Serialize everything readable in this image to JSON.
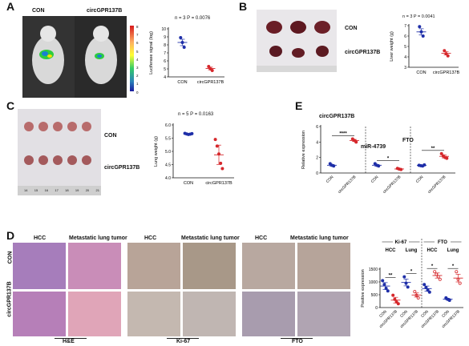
{
  "panels": {
    "a": {
      "letter": "A",
      "con": "CON",
      "treat": "circGPR137B",
      "colorbar_ticks": [
        "8",
        "7",
        "6",
        "5",
        "4",
        "3",
        "2",
        "1",
        "0"
      ],
      "stat": "n = 3  P = 0.0076"
    },
    "b": {
      "letter": "B",
      "con": "CON",
      "treat": "circGPR137B",
      "stat": "n = 3  P = 0.0041"
    },
    "c": {
      "letter": "C",
      "con": "CON",
      "treat": "circGPR137B",
      "stat": "n = 5  P = 0.0163",
      "ruler": [
        "14",
        "15",
        "16",
        "17",
        "18",
        "19",
        "20",
        "21"
      ]
    },
    "e": {
      "letter": "E",
      "group1": "circGPR137B",
      "group2": "miR-4739",
      "group3": "FTO"
    },
    "d": {
      "letter": "D",
      "hcc": "HCC",
      "met": "Metastatic lung tumor",
      "row_con": "CON",
      "row_treat": "circGPR137B",
      "stain1": "H&E",
      "stain2": "Ki-67",
      "stain3": "FTO"
    }
  },
  "colors": {
    "con": "#1f2fa8",
    "treat": "#d6282c",
    "mean": "#222222"
  },
  "chart_data": [
    {
      "id": "A",
      "type": "scatter",
      "ylabel": "Luciferase signal (log)",
      "ylim": [
        4,
        10
      ],
      "yticks": [
        4,
        5,
        6,
        7,
        8,
        9,
        10
      ],
      "categories": [
        "CON",
        "circGPR137B"
      ],
      "series": [
        {
          "name": "CON",
          "points": [
            8.9,
            8.3,
            7.7
          ],
          "mean": 8.3
        },
        {
          "name": "circGPR137B",
          "points": [
            5.3,
            5.0,
            4.8
          ],
          "mean": 5.05
        }
      ]
    },
    {
      "id": "B",
      "type": "scatter",
      "ylabel": "Liver weight (g)",
      "ylim": [
        3,
        7
      ],
      "yticks": [
        3,
        4,
        5,
        6,
        7
      ],
      "categories": [
        "CON",
        "circGPR137B"
      ],
      "series": [
        {
          "name": "CON",
          "points": [
            6.9,
            6.4,
            6.0
          ],
          "mean": 6.4
        },
        {
          "name": "circGPR137B",
          "points": [
            4.6,
            4.3,
            4.1
          ],
          "mean": 4.35
        }
      ]
    },
    {
      "id": "C",
      "type": "scatter",
      "ylabel": "Lung weight (g)",
      "ylim": [
        4.0,
        6.0
      ],
      "yticks": [
        4.0,
        4.5,
        5.0,
        5.5,
        6.0
      ],
      "categories": [
        "CON",
        "circGPR137B"
      ],
      "series": [
        {
          "name": "CON",
          "points": [
            5.68,
            5.66,
            5.64,
            5.65,
            5.67
          ],
          "mean": 5.66
        },
        {
          "name": "circGPR137B",
          "points": [
            5.45,
            5.2,
            4.9,
            4.55,
            4.35
          ],
          "mean": 4.87
        }
      ]
    },
    {
      "id": "E",
      "type": "scatter",
      "ylabel": "Relative expression",
      "ylim": [
        0,
        6
      ],
      "yticks": [
        0,
        2,
        4,
        6
      ],
      "categories": [
        "CON",
        "circGPR137B",
        "CON",
        "circGPR137B",
        "CON",
        "circGPR137B"
      ],
      "significance": [
        "****",
        "*",
        "**"
      ],
      "series": [
        {
          "name": "CON-circ",
          "points": [
            1.2,
            1.0,
            0.9
          ],
          "mean": 1.0
        },
        {
          "name": "circGPR137B-circ",
          "points": [
            4.4,
            4.2,
            4.0
          ],
          "mean": 4.2
        },
        {
          "name": "CON-miR",
          "points": [
            1.2,
            1.0,
            0.9
          ],
          "mean": 1.0
        },
        {
          "name": "circGPR137B-miR",
          "points": [
            0.6,
            0.5,
            0.45
          ],
          "mean": 0.52
        },
        {
          "name": "CON-FTO",
          "points": [
            1.0,
            0.95,
            0.9,
            1.05
          ],
          "mean": 0.97
        },
        {
          "name": "circGPR137B-FTO",
          "points": [
            2.5,
            2.2,
            2.0,
            1.9
          ],
          "mean": 2.15
        }
      ]
    },
    {
      "id": "D",
      "type": "scatter",
      "ylabel": "Positive expression",
      "ylim": [
        0,
        1500
      ],
      "yticks": [
        0,
        500,
        1000,
        1500
      ],
      "groups": [
        "Ki-67",
        "FTO"
      ],
      "subgroups": [
        "HCC",
        "Lung"
      ],
      "categories": [
        "CON",
        "circGPR137B",
        "CON",
        "circGPR137B",
        "CON",
        "circGPR137B",
        "CON",
        "circGPR137B"
      ],
      "significance": [
        "**",
        "*",
        "*",
        "*"
      ],
      "series": [
        {
          "name": "Ki67-HCC-CON",
          "points": [
            1050,
            900,
            750,
            650
          ],
          "mean": 840
        },
        {
          "name": "Ki67-HCC-circ",
          "points": [
            480,
            320,
            220,
            150
          ],
          "mean": 290
        },
        {
          "name": "Ki67-Lung-CON",
          "points": [
            1200,
            950,
            800
          ],
          "mean": 980
        },
        {
          "name": "Ki67-Lung-circ",
          "points": [
            620,
            480,
            380
          ],
          "mean": 490
        },
        {
          "name": "FTO-HCC-CON",
          "points": [
            900,
            780,
            680,
            600
          ],
          "mean": 740
        },
        {
          "name": "FTO-HCC-circ",
          "points": [
            1400,
            1300,
            1200,
            1100
          ],
          "mean": 1250
        },
        {
          "name": "FTO-Lung-CON",
          "points": [
            380,
            320,
            280
          ],
          "mean": 330
        },
        {
          "name": "FTO-Lung-circ",
          "points": [
            1400,
            1100,
            950
          ],
          "mean": 1150
        }
      ]
    }
  ]
}
